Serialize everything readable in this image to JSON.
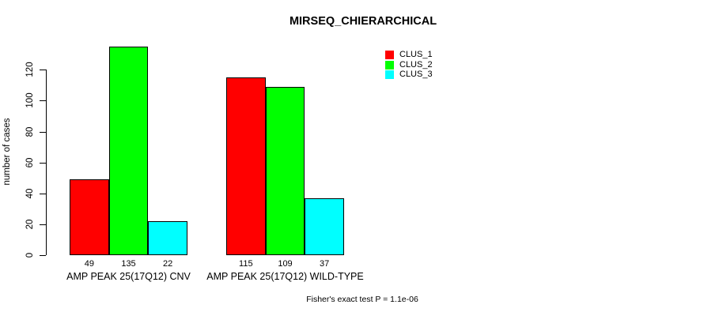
{
  "chart_data": {
    "type": "bar",
    "title": "MIRSEQ_CHIERARCHICAL",
    "xlabel": "",
    "ylabel": "number of cases",
    "categories": [
      "AMP PEAK 25(17Q12) CNV",
      "AMP PEAK 25(17Q12) WILD-TYPE"
    ],
    "series": [
      {
        "name": "CLUS_1",
        "color": "#ff0000",
        "values": [
          49,
          115
        ]
      },
      {
        "name": "CLUS_2",
        "color": "#00ff00",
        "values": [
          135,
          109
        ]
      },
      {
        "name": "CLUS_3",
        "color": "#00ffff",
        "values": [
          22,
          37
        ]
      }
    ],
    "value_labels": [
      [
        "49",
        "135",
        "22"
      ],
      [
        "115",
        "109",
        "37"
      ]
    ],
    "yticks": [
      "0",
      "20",
      "40",
      "60",
      "80",
      "100",
      "120"
    ],
    "ylim": [
      0,
      135
    ],
    "grid": false,
    "legend_position": "top-right",
    "annotation": "Fisher's exact test P = 1.1e-06"
  }
}
